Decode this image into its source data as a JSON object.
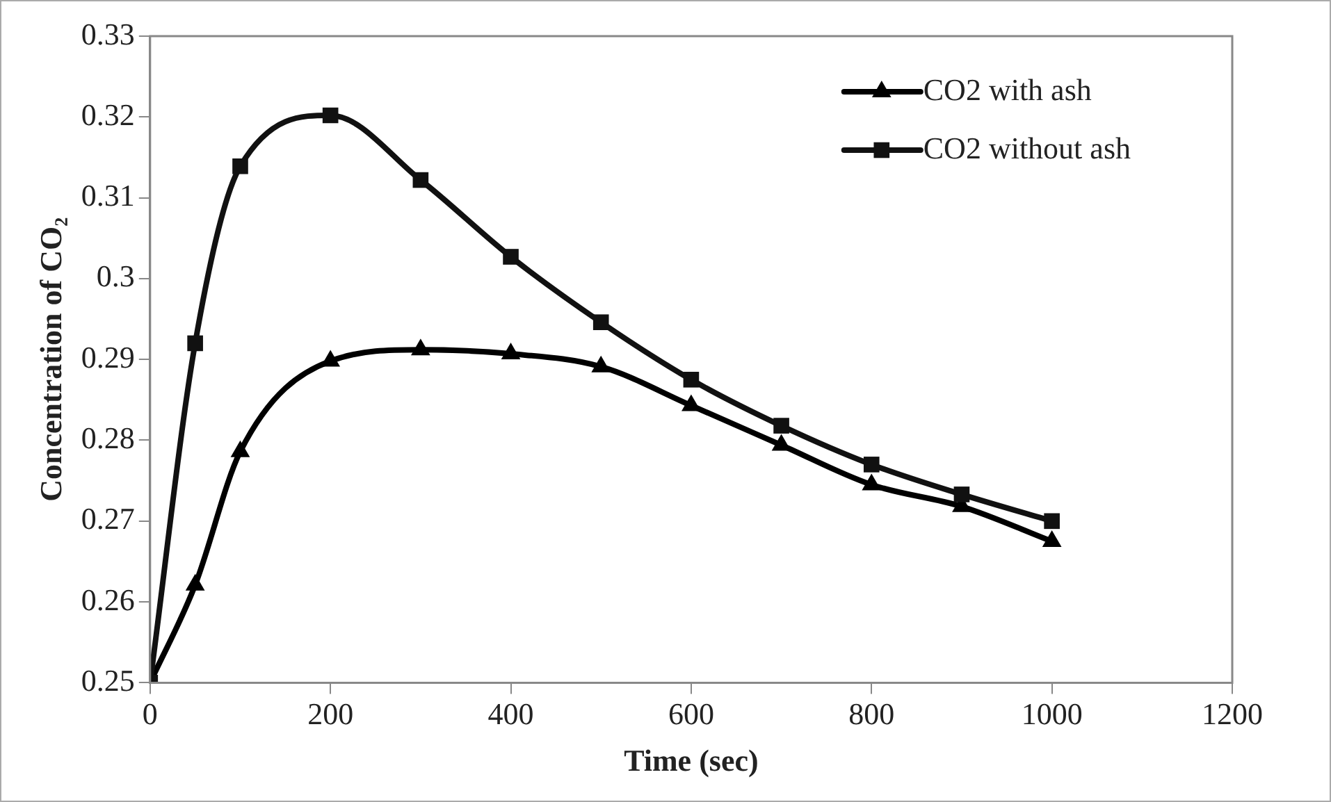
{
  "chart_data": {
    "type": "line",
    "xlabel": "Time (sec)",
    "ylabel": "Concentration of CO₂",
    "x": [
      0,
      50,
      100,
      200,
      300,
      400,
      500,
      600,
      700,
      800,
      900,
      1000
    ],
    "series": [
      {
        "name": "CO2 with ash",
        "color": "#000000",
        "marker": "triangle",
        "values": [
          0.25,
          0.2621,
          0.2786,
          0.2898,
          0.2912,
          0.2907,
          0.2891,
          0.2843,
          0.2794,
          0.2745,
          0.2718,
          0.2675
        ]
      },
      {
        "name": "CO2 without ash",
        "color": "#111111",
        "marker": "square",
        "values": [
          0.25,
          0.292,
          0.3139,
          0.3202,
          0.3122,
          0.3027,
          0.2946,
          0.2875,
          0.2818,
          0.277,
          0.2733,
          0.27
        ]
      }
    ],
    "xlim": [
      0,
      1200
    ],
    "xticks": [
      0,
      200,
      400,
      600,
      800,
      1000,
      1200
    ],
    "ylim": [
      0.25,
      0.33
    ],
    "yticks": [
      0.25,
      0.26,
      0.27,
      0.28,
      0.29,
      0.3,
      0.31,
      0.32,
      0.33
    ],
    "grid": false,
    "legend": "top right",
    "line_style": "solid"
  }
}
